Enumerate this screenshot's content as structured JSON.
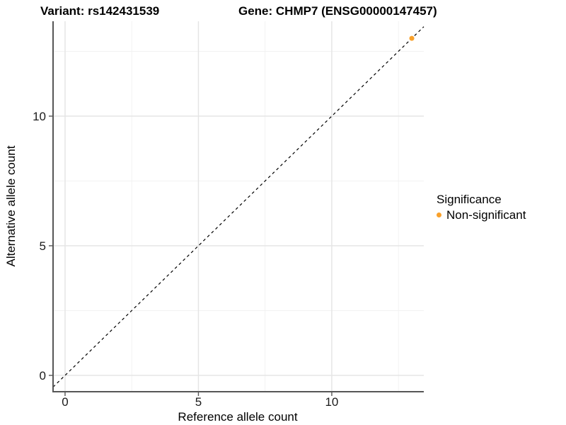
{
  "chart_data": {
    "type": "scatter",
    "titles": {
      "left": "Variant: rs142431539",
      "right": "Gene: CHMP7 (ENSG00000147457)"
    },
    "xlabel": "Reference allele count",
    "ylabel": "Alternative allele count",
    "x_ticks": [
      0,
      5,
      10
    ],
    "y_ticks": [
      0,
      5,
      10
    ],
    "x_minor_gridlines": [
      2.5,
      7.5,
      12.5
    ],
    "y_minor_gridlines": [
      2.5,
      7.5,
      12.5
    ],
    "xlim": [
      -0.45,
      13.45
    ],
    "ylim": [
      -0.63,
      13.66
    ],
    "grid": {
      "major_color": "#E4E4E4",
      "minor_color": "#F0F0F0"
    },
    "axis_color": "#565656",
    "tick_label_color": "#1A1A1A",
    "reference_line": {
      "slope": 1,
      "intercept": 0,
      "style": "dashed",
      "color": "#000000"
    },
    "series": [
      {
        "name": "Non-significant",
        "color": "#F9A12B",
        "points": [
          {
            "x": 13,
            "y": 13
          }
        ]
      }
    ],
    "legend": {
      "title": "Significance",
      "position": "right",
      "entries": [
        {
          "label": "Non-significant",
          "color": "#F9A12B"
        }
      ]
    }
  }
}
